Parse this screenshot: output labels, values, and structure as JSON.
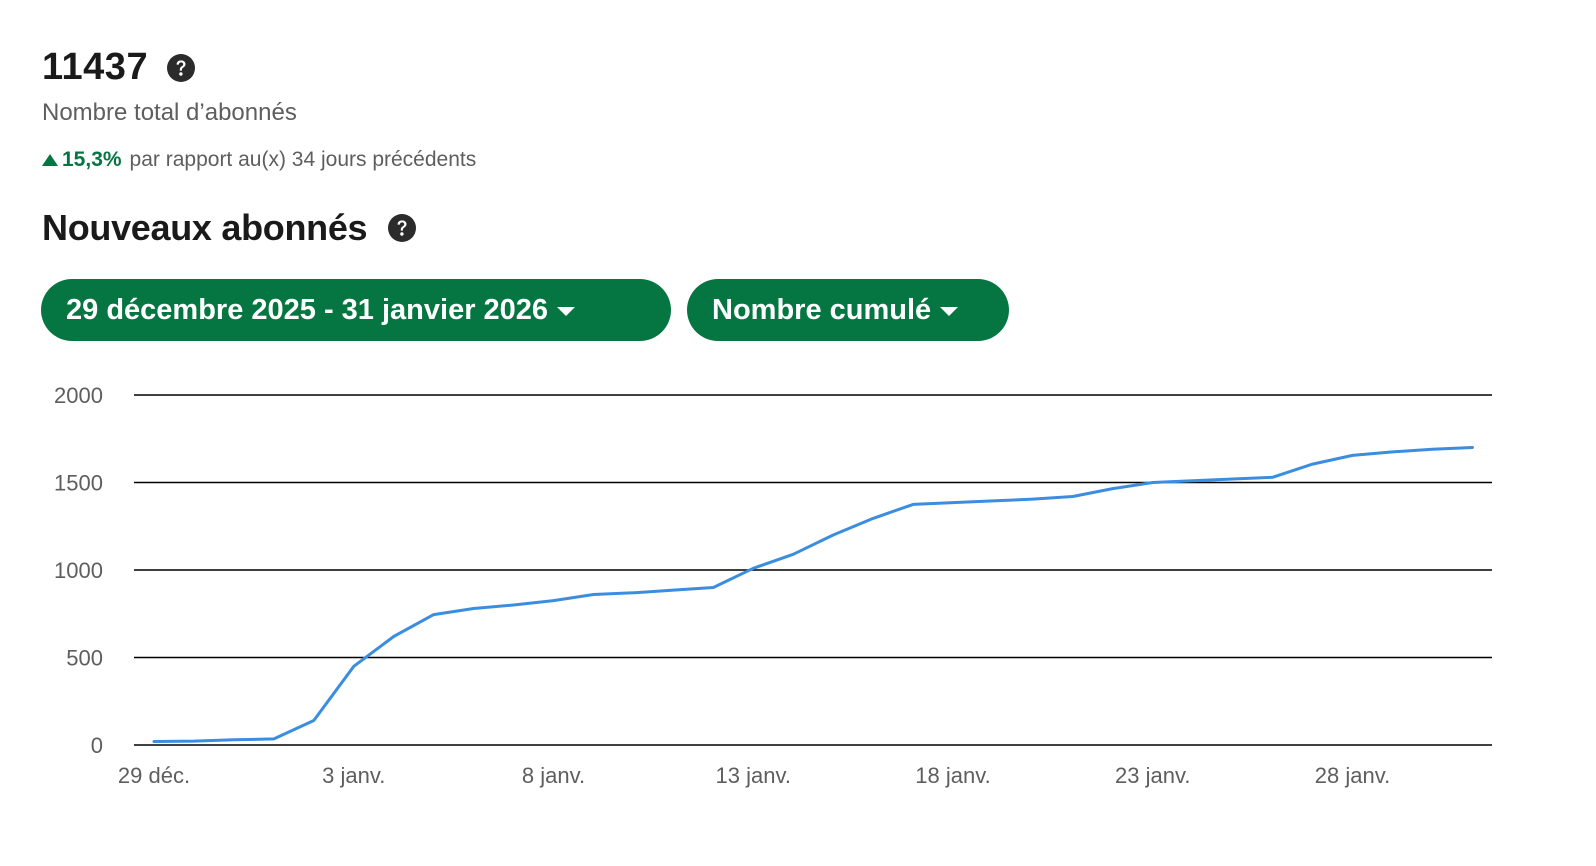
{
  "summary": {
    "total_value": "11437",
    "total_label": "Nombre total d’abonnés",
    "trend_value": "15,3%",
    "trend_text": "par rapport au(x) 34 jours précédents"
  },
  "section": {
    "title": "Nouveaux abonnés"
  },
  "filters": {
    "date_range": "29 décembre 2025 - 31 janvier 2026",
    "metric": "Nombre cumulé"
  },
  "icons": {
    "help": "question-circle-icon",
    "trend": "triangle-up-icon",
    "dropdown": "chevron-down-icon"
  },
  "colors": {
    "accent": "#057642",
    "line": "#3b8de0",
    "grid": "#000000"
  },
  "chart_data": {
    "type": "line",
    "x_start": "29 déc.",
    "x": [
      "29 déc.",
      "30 déc.",
      "31 déc.",
      "1 janv.",
      "2 janv.",
      "3 janv.",
      "4 janv.",
      "5 janv.",
      "6 janv.",
      "7 janv.",
      "8 janv.",
      "9 janv.",
      "10 janv.",
      "11 janv.",
      "12 janv.",
      "13 janv.",
      "14 janv.",
      "15 janv.",
      "16 janv.",
      "17 janv.",
      "18 janv.",
      "19 janv.",
      "20 janv.",
      "21 janv.",
      "22 janv.",
      "23 janv.",
      "24 janv.",
      "25 janv.",
      "26 janv.",
      "27 janv.",
      "28 janv.",
      "29 janv.",
      "30 janv.",
      "31 janv."
    ],
    "series": [
      {
        "name": "",
        "values": [
          20,
          22,
          30,
          35,
          140,
          450,
          620,
          745,
          780,
          800,
          825,
          860,
          870,
          885,
          900,
          1010,
          1090,
          1200,
          1295,
          1375,
          1385,
          1395,
          1405,
          1420,
          1465,
          1500,
          1510,
          1520,
          1530,
          1605,
          1655,
          1675,
          1690,
          1700
        ]
      }
    ],
    "xticks": [
      "29 déc.",
      "3 janv.",
      "8 janv.",
      "13 janv.",
      "18 janv.",
      "23 janv.",
      "28 janv."
    ],
    "xtick_index": [
      0,
      5,
      10,
      15,
      20,
      25,
      30
    ],
    "yticks": [
      "0",
      "500",
      "1000",
      "1500",
      "2000"
    ],
    "ylim": [
      0,
      2000
    ],
    "grid": true,
    "title": "",
    "xlabel": "",
    "ylabel": ""
  }
}
